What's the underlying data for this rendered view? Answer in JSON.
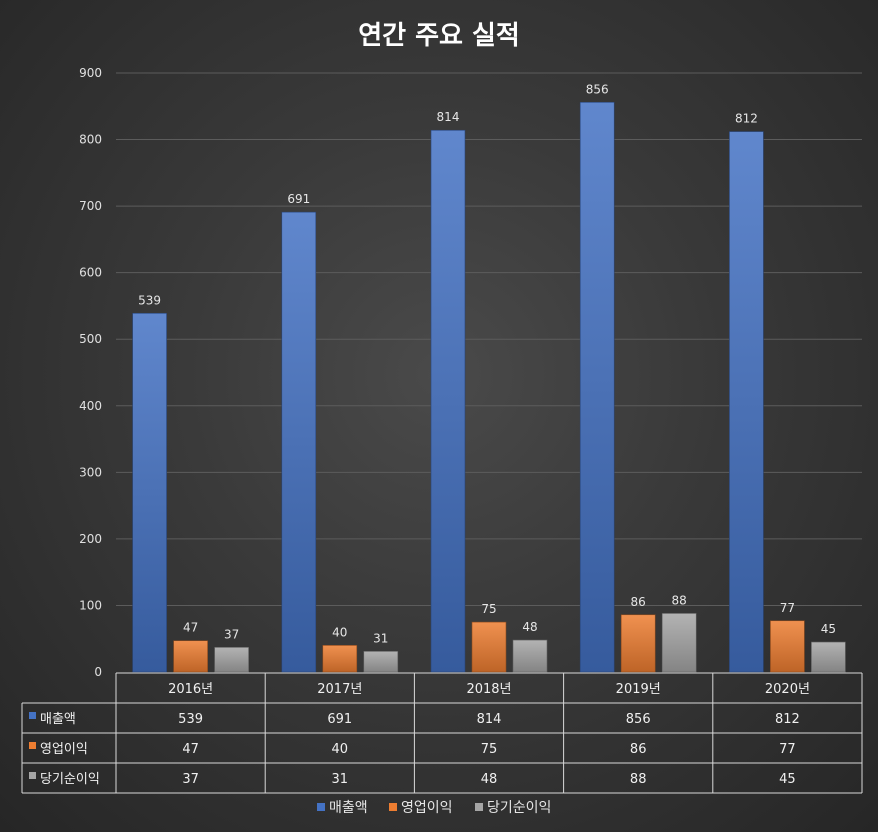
{
  "chart_data": {
    "type": "bar",
    "title": "연간 주요 실적",
    "categories": [
      "2016년",
      "2017년",
      "2018년",
      "2019년",
      "2020년"
    ],
    "series": [
      {
        "name": "매출액",
        "values": [
          539,
          691,
          814,
          856,
          812
        ],
        "color": "#4472C4"
      },
      {
        "name": "영업이익",
        "values": [
          47,
          40,
          75,
          86,
          77
        ],
        "color": "#ED7D31"
      },
      {
        "name": "당기순이익",
        "values": [
          37,
          31,
          48,
          88,
          45
        ],
        "color": "#A5A5A5"
      }
    ],
    "ylim": [
      0,
      900
    ],
    "yticks": [
      0,
      100,
      200,
      300,
      400,
      500,
      600,
      700,
      800,
      900
    ],
    "grid": true,
    "data_table": true,
    "legend_position": "bottom"
  }
}
